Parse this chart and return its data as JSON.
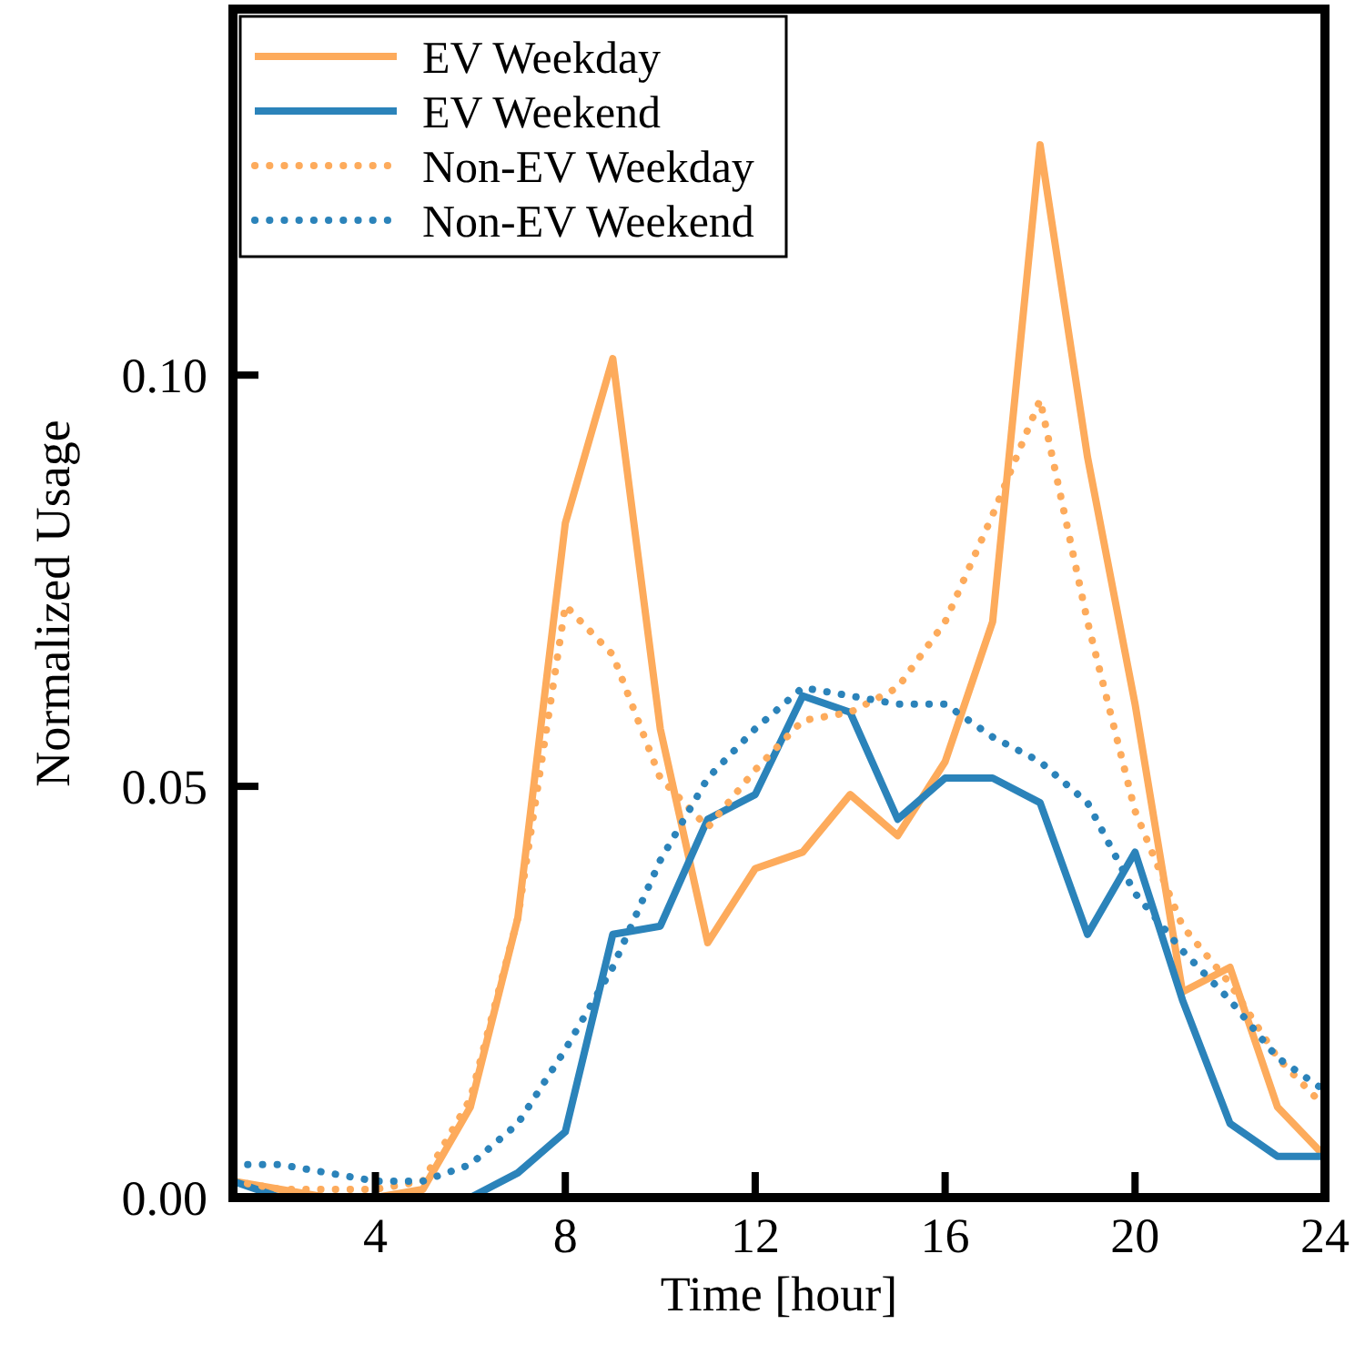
{
  "chart_data": {
    "type": "line",
    "xlabel": "Time [hour]",
    "ylabel": "Normalized Usage",
    "x": [
      1,
      2,
      3,
      4,
      5,
      6,
      7,
      8,
      9,
      10,
      11,
      12,
      13,
      14,
      15,
      16,
      17,
      18,
      19,
      20,
      21,
      22,
      23,
      24
    ],
    "xlim": [
      1,
      24
    ],
    "xticks": [
      4,
      8,
      12,
      16,
      20,
      24
    ],
    "ylim": [
      0,
      0.1445
    ],
    "yticks": [
      {
        "value": 0,
        "label": "0.00"
      },
      {
        "value": 0.05,
        "label": "0.05"
      },
      {
        "value": 0.1,
        "label": "0.10"
      }
    ],
    "grid": false,
    "legend": "top left",
    "marker": "none",
    "series": [
      {
        "name": "EV Weekday",
        "color": "#fdab5c",
        "line_style": "solid",
        "values": [
          0.002,
          0.001,
          0.0,
          0.0,
          0.001,
          0.011,
          0.034,
          0.082,
          0.102,
          0.057,
          0.031,
          0.04,
          0.042,
          0.049,
          0.044,
          0.053,
          0.07,
          0.128,
          0.09,
          0.06,
          0.025,
          0.028,
          0.011,
          0.005
        ]
      },
      {
        "name": "EV Weekend",
        "color": "#2b83ba",
        "line_style": "solid",
        "values": [
          0.002,
          0.0,
          null,
          null,
          null,
          0.0,
          0.003,
          0.008,
          0.032,
          0.033,
          0.046,
          0.049,
          0.061,
          0.059,
          0.046,
          0.051,
          0.051,
          0.048,
          0.032,
          0.042,
          0.024,
          0.009,
          0.005,
          0.005
        ]
      },
      {
        "name": "Non-EV Weekday",
        "color": "#fdab5c",
        "line_style": "dotted",
        "values": [
          0.002,
          0.001,
          0.001,
          0.001,
          0.002,
          0.012,
          0.034,
          0.072,
          0.066,
          0.051,
          0.045,
          0.052,
          0.058,
          0.059,
          0.062,
          0.07,
          0.083,
          0.097,
          0.07,
          0.047,
          0.033,
          0.026,
          0.017,
          0.011
        ]
      },
      {
        "name": "Non-EV Weekend",
        "color": "#2b83ba",
        "line_style": "dotted",
        "values": [
          0.004,
          0.004,
          0.003,
          0.002,
          0.002,
          0.004,
          0.009,
          0.018,
          0.028,
          0.041,
          0.051,
          0.057,
          0.062,
          0.061,
          0.06,
          0.06,
          0.056,
          0.053,
          0.048,
          0.037,
          0.03,
          0.024,
          0.017,
          0.013
        ]
      }
    ]
  }
}
